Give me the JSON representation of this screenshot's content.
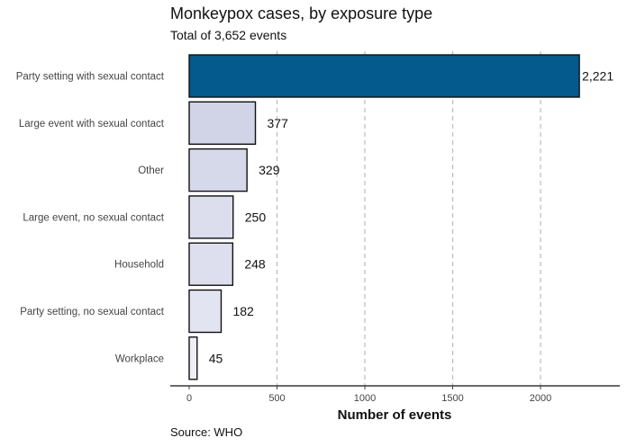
{
  "chart_data": {
    "type": "bar",
    "orientation": "horizontal",
    "title": "Monkeypox cases, by exposure type",
    "subtitle": "Total of 3,652 events",
    "source": "Source: WHO",
    "xlabel": "Number of events",
    "ylabel": "",
    "xlim": [
      0,
      2450
    ],
    "xticks": [
      0,
      500,
      1000,
      1500,
      2000
    ],
    "grid": "vertical dashed",
    "categories": [
      "Party setting with sexual contact",
      "Large event with sexual contact",
      "Other",
      "Large event, no sexual contact",
      "Household",
      "Party setting, no sexual contact",
      "Workplace"
    ],
    "values": [
      2221,
      377,
      329,
      250,
      248,
      182,
      45
    ],
    "value_labels": [
      "2,221",
      "377",
      "329",
      "250",
      "248",
      "182",
      "45"
    ],
    "colors": {
      "highlight": "#045a8d",
      "bars": [
        "#045a8d",
        "#d0d4e6",
        "#d5d9ea",
        "#dcdeee",
        "#dddfee",
        "#e3e4f1",
        "#eeeef6"
      ],
      "outline": "#111111",
      "grid": "#bbbbbb"
    }
  }
}
